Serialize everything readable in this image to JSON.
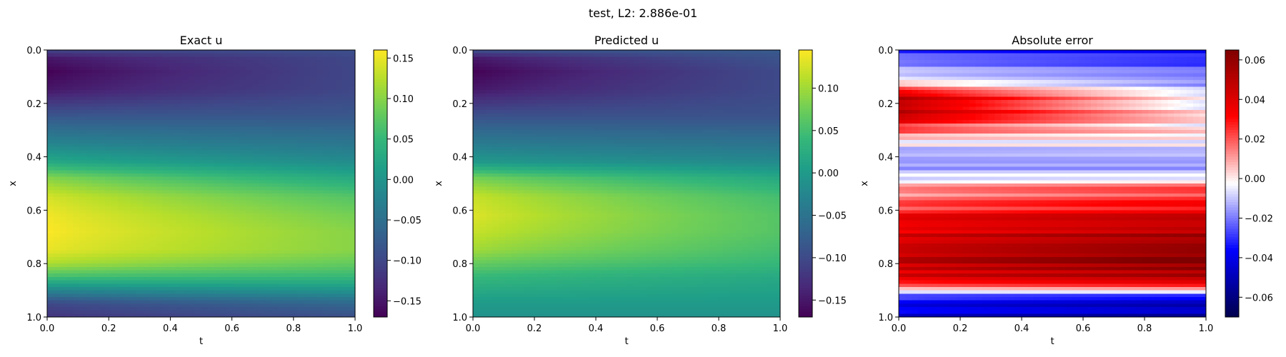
{
  "suptitle": "test, L2: 2.886e-01",
  "colors": {
    "viridis": [
      "#440154",
      "#482878",
      "#3e4a89",
      "#31688e",
      "#26828e",
      "#1f9e89",
      "#35b779",
      "#6ece58",
      "#b5de2b",
      "#fde725"
    ],
    "seismic": [
      "#00004c",
      "#0000ff",
      "#ffffff",
      "#ff0000",
      "#7f0000"
    ]
  },
  "chart_data": [
    {
      "type": "heatmap",
      "title": "Exact u",
      "xlabel": "t",
      "ylabel": "x",
      "xlim": [
        0.0,
        1.0
      ],
      "ylim": [
        1.0,
        0.0
      ],
      "xticks": [
        "0.0",
        "0.2",
        "0.4",
        "0.6",
        "0.8",
        "1.0"
      ],
      "yticks": [
        "0.0",
        "0.2",
        "0.4",
        "0.6",
        "0.8",
        "1.0"
      ],
      "colormap": "viridis",
      "clim": [
        -0.17,
        0.16
      ],
      "colorbar_ticks": [
        0.15,
        0.1,
        0.05,
        0.0,
        -0.05,
        -0.1,
        -0.15
      ],
      "colorbar_labels": [
        "0.15",
        "0.10",
        "0.05",
        "0.00",
        "−0.05",
        "−0.10",
        "−0.15"
      ],
      "profile_x": [
        0.0,
        0.03,
        0.08,
        0.15,
        0.25,
        0.35,
        0.42,
        0.48,
        0.55,
        0.62,
        0.68,
        0.75,
        0.8,
        0.85,
        0.9,
        0.95,
        1.0
      ],
      "profile_u_t0": [
        -0.1,
        -0.15,
        -0.17,
        -0.15,
        -0.08,
        -0.02,
        0.03,
        0.1,
        0.14,
        0.155,
        0.16,
        0.15,
        0.12,
        0.06,
        -0.02,
        -0.1,
        -0.12
      ],
      "profile_u_t1": [
        -0.09,
        -0.1,
        -0.1,
        -0.1,
        -0.08,
        -0.04,
        -0.01,
        0.03,
        0.07,
        0.09,
        0.1,
        0.1,
        0.08,
        0.05,
        0.0,
        -0.06,
        -0.09
      ]
    },
    {
      "type": "heatmap",
      "title": "Predicted u",
      "xlabel": "t",
      "ylabel": "x",
      "xlim": [
        0.0,
        1.0
      ],
      "ylim": [
        1.0,
        0.0
      ],
      "xticks": [
        "0.0",
        "0.2",
        "0.4",
        "0.6",
        "0.8",
        "1.0"
      ],
      "yticks": [
        "0.0",
        "0.2",
        "0.4",
        "0.6",
        "0.8",
        "1.0"
      ],
      "colormap": "viridis",
      "clim": [
        -0.17,
        0.145
      ],
      "colorbar_ticks": [
        0.1,
        0.05,
        0.0,
        -0.05,
        -0.1,
        -0.15
      ],
      "colorbar_labels": [
        "0.10",
        "0.05",
        "0.00",
        "−0.05",
        "−0.10",
        "−0.15"
      ],
      "profile_x": [
        0.0,
        0.03,
        0.08,
        0.15,
        0.25,
        0.35,
        0.42,
        0.48,
        0.55,
        0.62,
        0.68,
        0.75,
        0.8,
        0.85,
        0.9,
        0.95,
        1.0
      ],
      "profile_u_t0": [
        -0.09,
        -0.15,
        -0.17,
        -0.15,
        -0.09,
        -0.04,
        0.0,
        0.08,
        0.12,
        0.13,
        0.12,
        0.1,
        0.07,
        0.04,
        0.02,
        0.0,
        -0.01
      ],
      "profile_u_t1": [
        -0.08,
        -0.09,
        -0.1,
        -0.1,
        -0.09,
        -0.05,
        -0.02,
        0.02,
        0.05,
        0.06,
        0.06,
        0.05,
        0.04,
        0.02,
        0.01,
        0.0,
        -0.01
      ]
    },
    {
      "type": "heatmap",
      "title": "Absolute error",
      "xlabel": "t",
      "ylabel": "x",
      "xlim": [
        0.0,
        1.0
      ],
      "ylim": [
        1.0,
        0.0
      ],
      "xticks": [
        "0.0",
        "0.2",
        "0.4",
        "0.6",
        "0.8",
        "1.0"
      ],
      "yticks": [
        "0.0",
        "0.2",
        "0.4",
        "0.6",
        "0.8",
        "1.0"
      ],
      "colormap": "seismic",
      "clim": [
        -0.07,
        0.065
      ],
      "colorbar_ticks": [
        0.06,
        0.04,
        0.02,
        0.0,
        -0.02,
        -0.04,
        -0.06
      ],
      "colorbar_labels": [
        "0.06",
        "0.04",
        "0.02",
        "0.00",
        "−0.02",
        "−0.04",
        "−0.06"
      ],
      "profile_x": [
        0.0,
        0.04,
        0.1,
        0.14,
        0.18,
        0.22,
        0.28,
        0.33,
        0.37,
        0.42,
        0.47,
        0.52,
        0.58,
        0.64,
        0.7,
        0.76,
        0.82,
        0.87,
        0.9,
        0.93,
        0.96,
        1.0
      ],
      "profile_err_t0": [
        -0.03,
        -0.02,
        -0.01,
        0.02,
        0.05,
        0.05,
        0.03,
        0.005,
        -0.01,
        -0.015,
        -0.01,
        0.01,
        0.02,
        0.035,
        0.04,
        0.045,
        0.045,
        0.03,
        0.0,
        -0.03,
        -0.04,
        -0.045
      ],
      "profile_err_t1": [
        -0.035,
        -0.03,
        -0.02,
        -0.01,
        -0.005,
        -0.003,
        0.0,
        0.0,
        -0.008,
        -0.015,
        -0.01,
        0.02,
        0.03,
        0.045,
        0.055,
        0.06,
        0.06,
        0.04,
        0.005,
        -0.04,
        -0.05,
        -0.055
      ],
      "stripe_amplitude": 0.008
    }
  ]
}
